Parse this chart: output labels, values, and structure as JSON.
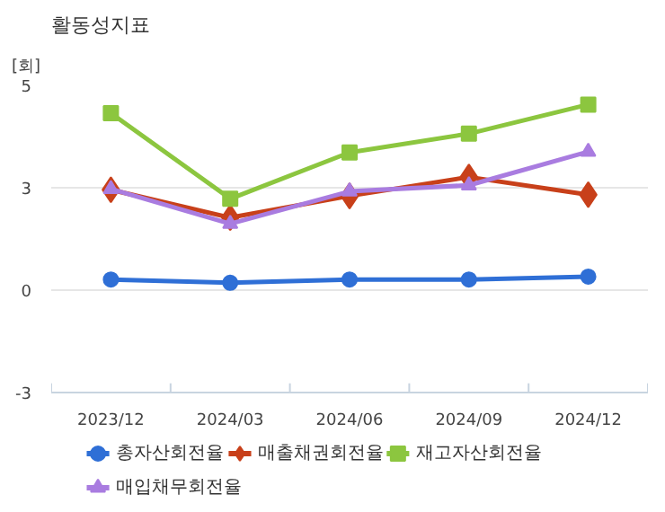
{
  "chart_data": {
    "type": "line",
    "title": "활동성지표",
    "ylabel": "[회]",
    "categories": [
      "2023/12",
      "2024/03",
      "2024/06",
      "2024/09",
      "2024/12"
    ],
    "series": [
      {
        "name": "총자산회전율",
        "color": "#2f6fd6",
        "marker": "circle",
        "values": [
          0.26,
          0.18,
          0.26,
          0.26,
          0.33
        ]
      },
      {
        "name": "매출채권회전율",
        "color": "#c8401a",
        "marker": "diamond",
        "values": [
          2.45,
          1.77,
          2.3,
          2.76,
          2.33
        ]
      },
      {
        "name": "재고자산회전율",
        "color": "#8cc63f",
        "marker": "square",
        "values": [
          4.32,
          2.23,
          3.36,
          3.82,
          4.53
        ]
      },
      {
        "name": "매입채무회전율",
        "color": "#a97ce0",
        "marker": "triangle",
        "values": [
          2.47,
          1.62,
          2.41,
          2.56,
          3.38
        ]
      }
    ],
    "ylim": [
      -2.5,
      5
    ],
    "yticks": [
      {
        "value": -2.5,
        "label": "-3"
      },
      {
        "value": 0,
        "label": "0"
      },
      {
        "value": 2.5,
        "label": "3"
      },
      {
        "value": 5,
        "label": "5"
      }
    ],
    "grid": "y",
    "legend": "bottom"
  }
}
